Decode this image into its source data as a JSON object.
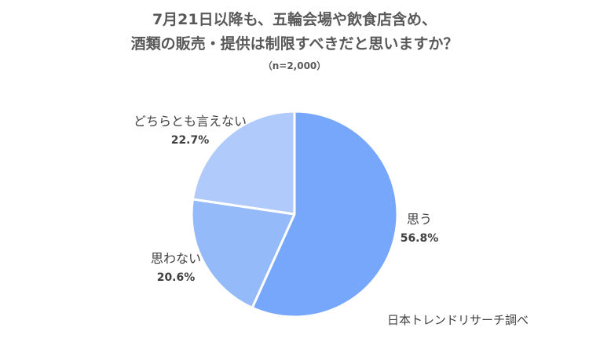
{
  "title_line1": "7月21日以降も、五輪会場や飲食店含め、",
  "title_line2": "酒類の販売・提供は制限すべきだと思いますか？",
  "subtitle": "（n=2,000）",
  "source": "日本トレンドリサーチ調べ",
  "chart_data": {
    "type": "pie",
    "title": "7月21日以降も、五輪会場や飲食店含め、酒類の販売・提供は制限すべきだと思いますか？",
    "slices": [
      {
        "label": "思う",
        "value": 56.8,
        "value_label": "56.8%",
        "color": "#76a7fa"
      },
      {
        "label": "思わない",
        "value": 20.6,
        "value_label": "20.6%",
        "color": "#94bafa"
      },
      {
        "label": "どちらとも言えない",
        "value": 22.7,
        "value_label": "22.7%",
        "color": "#b0cbfb"
      }
    ],
    "start": "top",
    "direction": "clockwise",
    "legend": "none"
  }
}
